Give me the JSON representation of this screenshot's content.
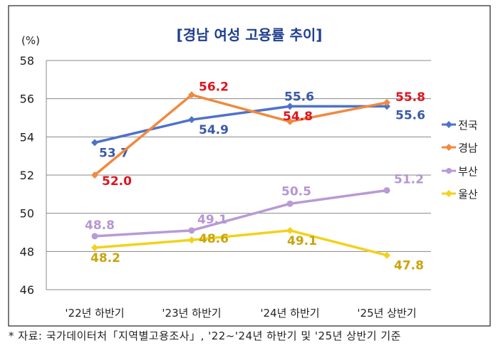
{
  "chart_data": {
    "type": "line",
    "title": "[경남 여성 고용률 추이]",
    "ylabel": "(%)",
    "ylim": [
      46,
      58
    ],
    "yticks": [
      46,
      48,
      50,
      52,
      54,
      56,
      58
    ],
    "categories": [
      "'22년 하반기",
      "'23년 하반기",
      "'24년 하반기",
      "'25년 상반기"
    ],
    "grid": true,
    "legend_position": "right",
    "series": [
      {
        "name": "전국",
        "values": [
          53.7,
          54.9,
          55.6,
          55.6
        ],
        "labels": [
          "53.7",
          "54.9",
          "55.6",
          "55.6"
        ],
        "color": "#4f72c8",
        "label_color": "#3a5aa8",
        "marker": "diamond"
      },
      {
        "name": "경남",
        "values": [
          52.0,
          56.2,
          54.8,
          55.8
        ],
        "labels": [
          "52.0",
          "56.2",
          "54.8",
          "55.8"
        ],
        "color": "#ef8a3e",
        "label_color": "#e0141e",
        "marker": "diamond"
      },
      {
        "name": "부산",
        "values": [
          48.8,
          49.1,
          50.5,
          51.2
        ],
        "labels": [
          "48.8",
          "49.1",
          "50.5",
          "51.2"
        ],
        "color": "#b89ad6",
        "label_color": "#b696d3",
        "marker": "circle"
      },
      {
        "name": "울산",
        "values": [
          48.2,
          48.6,
          49.1,
          47.8
        ],
        "labels": [
          "48.2",
          "48.6",
          "49.1",
          "47.8"
        ],
        "color": "#f2d21b",
        "label_color": "#c9a40a",
        "marker": "diamond"
      }
    ]
  },
  "footnote": "* 자료: 국가데이터처「지역별고용조사」, '22~'24년 하반기 및 '25년 상반기 기준"
}
